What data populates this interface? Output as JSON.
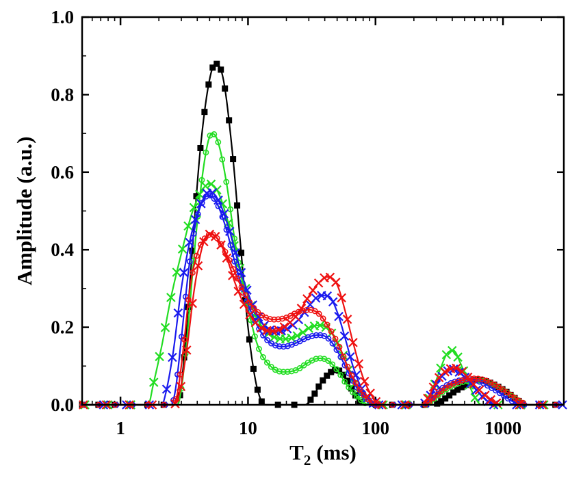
{
  "chart_data": {
    "type": "line",
    "xscale": "log",
    "xlim": [
      0.5,
      3000
    ],
    "ylim": [
      0.0,
      1.0
    ],
    "xlabel_main": "T",
    "xlabel_sub": "2",
    "xlabel_unit": "(ms)",
    "ylabel": "Amplitude (a.u.)",
    "x_ticks": [
      {
        "value": 1,
        "label": "1"
      },
      {
        "value": 10,
        "label": "10"
      },
      {
        "value": 100,
        "label": "100"
      },
      {
        "value": 1000,
        "label": "1000"
      }
    ],
    "y_ticks": [
      {
        "value": 0.0,
        "label": "0.0"
      },
      {
        "value": 0.2,
        "label": "0.2"
      },
      {
        "value": 0.4,
        "label": "0.4"
      },
      {
        "value": 0.6,
        "label": "0.6"
      },
      {
        "value": 0.8,
        "label": "0.8"
      },
      {
        "value": 1.0,
        "label": "1.0"
      }
    ],
    "series": [
      {
        "name": "black-squares",
        "color": "#000000",
        "marker": "square",
        "points": [
          [
            0.5,
            0
          ],
          [
            2.8,
            0
          ],
          [
            3.0,
            0.05
          ],
          [
            3.3,
            0.2
          ],
          [
            3.7,
            0.42
          ],
          [
            4.2,
            0.65
          ],
          [
            5.0,
            0.84
          ],
          [
            5.6,
            0.88
          ],
          [
            6.4,
            0.84
          ],
          [
            7.5,
            0.66
          ],
          [
            8.7,
            0.42
          ],
          [
            10,
            0.2
          ],
          [
            11.5,
            0.06
          ],
          [
            13,
            0.005
          ],
          [
            14,
            0
          ],
          [
            28,
            0
          ],
          [
            32,
            0.02
          ],
          [
            38,
            0.06
          ],
          [
            45,
            0.085
          ],
          [
            50,
            0.09
          ],
          [
            58,
            0.07
          ],
          [
            68,
            0.03
          ],
          [
            80,
            0
          ],
          [
            280,
            0
          ],
          [
            330,
            0.01
          ],
          [
            400,
            0.03
          ],
          [
            500,
            0.05
          ],
          [
            620,
            0.065
          ],
          [
            750,
            0.06
          ],
          [
            900,
            0.048
          ],
          [
            1100,
            0.03
          ],
          [
            1300,
            0.012
          ],
          [
            1500,
            0
          ],
          [
            3000,
            0
          ]
        ]
      },
      {
        "name": "green-circles",
        "color": "#22dd22",
        "marker": "circle",
        "points": [
          [
            0.5,
            0
          ],
          [
            2.8,
            0
          ],
          [
            3.0,
            0.04
          ],
          [
            3.3,
            0.16
          ],
          [
            3.7,
            0.35
          ],
          [
            4.2,
            0.54
          ],
          [
            4.8,
            0.67
          ],
          [
            5.2,
            0.7
          ],
          [
            5.8,
            0.68
          ],
          [
            6.8,
            0.57
          ],
          [
            8,
            0.41
          ],
          [
            10,
            0.25
          ],
          [
            12,
            0.15
          ],
          [
            15,
            0.1
          ],
          [
            19,
            0.085
          ],
          [
            24,
            0.09
          ],
          [
            30,
            0.11
          ],
          [
            36,
            0.12
          ],
          [
            42,
            0.115
          ],
          [
            50,
            0.09
          ],
          [
            60,
            0.05
          ],
          [
            75,
            0.015
          ],
          [
            90,
            0
          ],
          [
            250,
            0
          ],
          [
            300,
            0.02
          ],
          [
            380,
            0.045
          ],
          [
            500,
            0.06
          ],
          [
            650,
            0.063
          ],
          [
            850,
            0.05
          ],
          [
            1100,
            0.03
          ],
          [
            1300,
            0.012
          ],
          [
            1500,
            0
          ],
          [
            3000,
            0
          ]
        ]
      },
      {
        "name": "green-crosses",
        "color": "#22dd22",
        "marker": "cross",
        "points": [
          [
            0.5,
            0
          ],
          [
            1.65,
            0
          ],
          [
            1.8,
            0.05
          ],
          [
            2.1,
            0.15
          ],
          [
            2.5,
            0.28
          ],
          [
            3.0,
            0.39
          ],
          [
            3.6,
            0.49
          ],
          [
            4.3,
            0.55
          ],
          [
            5.0,
            0.57
          ],
          [
            5.8,
            0.55
          ],
          [
            7,
            0.47
          ],
          [
            8.5,
            0.36
          ],
          [
            10.5,
            0.26
          ],
          [
            13,
            0.2
          ],
          [
            16,
            0.175
          ],
          [
            20,
            0.17
          ],
          [
            25,
            0.18
          ],
          [
            31,
            0.2
          ],
          [
            37,
            0.205
          ],
          [
            44,
            0.19
          ],
          [
            52,
            0.15
          ],
          [
            62,
            0.09
          ],
          [
            72,
            0.04
          ],
          [
            85,
            0.01
          ],
          [
            100,
            0
          ],
          [
            240,
            0
          ],
          [
            275,
            0.03
          ],
          [
            320,
            0.09
          ],
          [
            370,
            0.135
          ],
          [
            410,
            0.14
          ],
          [
            460,
            0.11
          ],
          [
            530,
            0.06
          ],
          [
            600,
            0.02
          ],
          [
            680,
            0
          ],
          [
            3000,
            0
          ]
        ]
      },
      {
        "name": "blue-crosses",
        "color": "#1a1aee",
        "marker": "cross",
        "points": [
          [
            0.5,
            0
          ],
          [
            2.1,
            0
          ],
          [
            2.3,
            0.04
          ],
          [
            2.6,
            0.14
          ],
          [
            3.0,
            0.3
          ],
          [
            3.6,
            0.44
          ],
          [
            4.3,
            0.52
          ],
          [
            5.0,
            0.55
          ],
          [
            5.8,
            0.53
          ],
          [
            7,
            0.46
          ],
          [
            8.5,
            0.36
          ],
          [
            10.5,
            0.27
          ],
          [
            13,
            0.21
          ],
          [
            16,
            0.19
          ],
          [
            20,
            0.195
          ],
          [
            25,
            0.22
          ],
          [
            31,
            0.26
          ],
          [
            37,
            0.282
          ],
          [
            43,
            0.28
          ],
          [
            50,
            0.24
          ],
          [
            58,
            0.17
          ],
          [
            68,
            0.09
          ],
          [
            80,
            0.035
          ],
          [
            95,
            0.005
          ],
          [
            110,
            0
          ],
          [
            230,
            0
          ],
          [
            265,
            0.02
          ],
          [
            310,
            0.06
          ],
          [
            360,
            0.085
          ],
          [
            410,
            0.092
          ],
          [
            470,
            0.08
          ],
          [
            560,
            0.055
          ],
          [
            650,
            0.03
          ],
          [
            750,
            0.01
          ],
          [
            850,
            0
          ],
          [
            3000,
            0
          ]
        ]
      },
      {
        "name": "blue-circles",
        "color": "#1a1aee",
        "marker": "circle",
        "points": [
          [
            0.5,
            0
          ],
          [
            2.5,
            0
          ],
          [
            2.7,
            0.04
          ],
          [
            3.0,
            0.17
          ],
          [
            3.4,
            0.34
          ],
          [
            3.9,
            0.47
          ],
          [
            4.5,
            0.53
          ],
          [
            5.0,
            0.54
          ],
          [
            5.7,
            0.52
          ],
          [
            6.8,
            0.45
          ],
          [
            8,
            0.36
          ],
          [
            10,
            0.26
          ],
          [
            12.5,
            0.19
          ],
          [
            15,
            0.16
          ],
          [
            19,
            0.15
          ],
          [
            24,
            0.16
          ],
          [
            30,
            0.175
          ],
          [
            36,
            0.18
          ],
          [
            43,
            0.17
          ],
          [
            52,
            0.13
          ],
          [
            62,
            0.08
          ],
          [
            75,
            0.035
          ],
          [
            90,
            0.01
          ],
          [
            100,
            0
          ],
          [
            240,
            0
          ],
          [
            280,
            0.02
          ],
          [
            340,
            0.045
          ],
          [
            420,
            0.06
          ],
          [
            520,
            0.065
          ],
          [
            650,
            0.06
          ],
          [
            800,
            0.045
          ],
          [
            1000,
            0.025
          ],
          [
            1200,
            0.008
          ],
          [
            1400,
            0
          ],
          [
            3000,
            0
          ]
        ]
      },
      {
        "name": "red-crosses",
        "color": "#ee1111",
        "marker": "cross",
        "points": [
          [
            0.5,
            0
          ],
          [
            2.6,
            0
          ],
          [
            2.9,
            0.03
          ],
          [
            3.3,
            0.14
          ],
          [
            3.8,
            0.3
          ],
          [
            4.4,
            0.41
          ],
          [
            5.0,
            0.44
          ],
          [
            5.7,
            0.43
          ],
          [
            6.8,
            0.38
          ],
          [
            8,
            0.31
          ],
          [
            10,
            0.24
          ],
          [
            12.5,
            0.2
          ],
          [
            15.5,
            0.19
          ],
          [
            19,
            0.2
          ],
          [
            24,
            0.23
          ],
          [
            30,
            0.28
          ],
          [
            36,
            0.315
          ],
          [
            42,
            0.33
          ],
          [
            50,
            0.31
          ],
          [
            58,
            0.24
          ],
          [
            68,
            0.15
          ],
          [
            80,
            0.07
          ],
          [
            95,
            0.02
          ],
          [
            110,
            0
          ],
          [
            230,
            0
          ],
          [
            260,
            0.02
          ],
          [
            300,
            0.06
          ],
          [
            350,
            0.085
          ],
          [
            420,
            0.095
          ],
          [
            500,
            0.08
          ],
          [
            600,
            0.05
          ],
          [
            720,
            0.025
          ],
          [
            850,
            0.008
          ],
          [
            1000,
            0
          ],
          [
            3000,
            0
          ]
        ]
      },
      {
        "name": "red-circles",
        "color": "#ee1111",
        "marker": "circle",
        "points": [
          [
            0.5,
            0
          ],
          [
            2.6,
            0
          ],
          [
            2.8,
            0.03
          ],
          [
            3.1,
            0.14
          ],
          [
            3.5,
            0.3
          ],
          [
            4.0,
            0.39
          ],
          [
            4.6,
            0.43
          ],
          [
            5.2,
            0.44
          ],
          [
            6.0,
            0.42
          ],
          [
            7.2,
            0.37
          ],
          [
            8.7,
            0.31
          ],
          [
            10.5,
            0.26
          ],
          [
            13,
            0.23
          ],
          [
            16,
            0.22
          ],
          [
            20,
            0.225
          ],
          [
            25,
            0.24
          ],
          [
            30,
            0.245
          ],
          [
            36,
            0.235
          ],
          [
            43,
            0.2
          ],
          [
            52,
            0.15
          ],
          [
            62,
            0.09
          ],
          [
            75,
            0.04
          ],
          [
            90,
            0.01
          ],
          [
            100,
            0
          ],
          [
            240,
            0
          ],
          [
            290,
            0.02
          ],
          [
            360,
            0.045
          ],
          [
            450,
            0.06
          ],
          [
            560,
            0.068
          ],
          [
            700,
            0.065
          ],
          [
            880,
            0.05
          ],
          [
            1100,
            0.03
          ],
          [
            1350,
            0.01
          ],
          [
            1600,
            0
          ],
          [
            3000,
            0
          ]
        ]
      }
    ]
  }
}
